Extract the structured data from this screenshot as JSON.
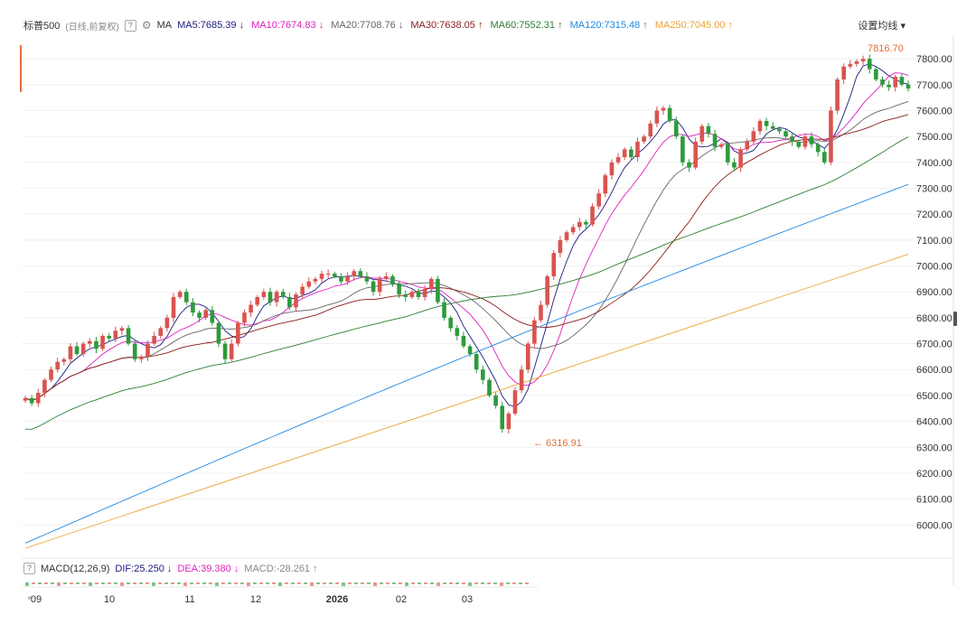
{
  "header": {
    "symbol": "标普500",
    "mode": "(日线,前复权)",
    "help": "?",
    "ma_label": "MA",
    "settings": "设置均线 ▾"
  },
  "ma_legend": [
    {
      "label": "MA5:7685.39",
      "dir": "down",
      "color": "#1a1a80"
    },
    {
      "label": "MA10:7674.83",
      "dir": "down",
      "color": "#e020c0"
    },
    {
      "label": "MA20:7708.76",
      "dir": "down",
      "color": "#666666"
    },
    {
      "label": "MA30:7638.05",
      "dir": "up",
      "color": "#8b1a1a"
    },
    {
      "label": "MA60:7552.31",
      "dir": "up",
      "color": "#2e7d32"
    },
    {
      "label": "MA120:7315.48",
      "dir": "up",
      "color": "#1e88e5"
    },
    {
      "label": "MA250:7045.00",
      "dir": "up",
      "color": "#f0a030"
    }
  ],
  "macd_legend": {
    "title": "MACD(12,26,9)",
    "dif": "DIF:25.250",
    "dif_dir": "down",
    "dea": "DEA:39.380",
    "dea_dir": "down",
    "macd": "MACD:-28.261",
    "macd_dir": "up"
  },
  "colors": {
    "up": "#d9534f",
    "down": "#2e9a3c",
    "ma5": "#1a1a80",
    "ma10": "#e020c0",
    "ma20": "#666666",
    "ma30": "#8b1a1a",
    "ma60": "#2e7d32",
    "ma120": "#1e88e5",
    "ma250": "#f0a030",
    "annotation": "#e0703a"
  },
  "chart_data": {
    "type": "line",
    "title": "标普500",
    "price_axis": {
      "ylim": [
        5900,
        7870
      ],
      "ticks": [
        "7800.00",
        "7700.00",
        "7600.00",
        "7500.00",
        "7400.00",
        "7300.00",
        "7200.00",
        "7100.00",
        "7000.00",
        "6900.00",
        "6800.00",
        "6700.00",
        "6600.00",
        "6500.00",
        "6400.00",
        "6300.00",
        "6200.00",
        "6100.00",
        "6000.00"
      ]
    },
    "macd_axis_label": "6000.00",
    "bottom_cut_label": "6000.00",
    "time_axis": [
      "09",
      "10",
      "11",
      "12",
      "2026",
      "02",
      "03"
    ],
    "annotations": {
      "high": "7816.70",
      "low": "6316.91"
    },
    "close_series": {
      "name": "close",
      "values": [
        6490,
        6470,
        6510,
        6560,
        6600,
        6630,
        6640,
        6690,
        6660,
        6700,
        6710,
        6680,
        6730,
        6720,
        6750,
        6760,
        6700,
        6640,
        6650,
        6700,
        6730,
        6760,
        6800,
        6880,
        6900,
        6860,
        6820,
        6800,
        6830,
        6780,
        6700,
        6640,
        6700,
        6780,
        6820,
        6850,
        6880,
        6900,
        6860,
        6900,
        6880,
        6840,
        6890,
        6920,
        6940,
        6950,
        6970,
        6970,
        6960,
        6940,
        6960,
        6980,
        6960,
        6940,
        6900,
        6950,
        6960,
        6930,
        6890,
        6880,
        6900,
        6880,
        6910,
        6950,
        6860,
        6800,
        6760,
        6730,
        6690,
        6660,
        6600,
        6560,
        6500,
        6460,
        6370,
        6430,
        6520,
        6600,
        6700,
        6790,
        6850,
        6960,
        7050,
        7100,
        7130,
        7150,
        7170,
        7160,
        7230,
        7280,
        7350,
        7400,
        7420,
        7450,
        7420,
        7480,
        7500,
        7550,
        7600,
        7610,
        7560,
        7500,
        7400,
        7380,
        7480,
        7540,
        7510,
        7460,
        7470,
        7400,
        7380,
        7450,
        7480,
        7520,
        7560,
        7540,
        7530,
        7520,
        7500,
        7480,
        7460,
        7500,
        7470,
        7440,
        7400,
        7600,
        7720,
        7770,
        7780,
        7790,
        7800,
        7760,
        7720,
        7700,
        7690,
        7730,
        7700,
        7685
      ]
    },
    "ma_series": [
      {
        "name": "MA5",
        "values_start": 6470,
        "values_end": 7685
      },
      {
        "name": "MA10",
        "values_start": 6460,
        "values_end": 7675
      },
      {
        "name": "MA20",
        "values_start": 6445,
        "values_end": 7709
      },
      {
        "name": "MA30",
        "values_start": 6430,
        "values_end": 7638
      },
      {
        "name": "MA60",
        "values_start": 6250,
        "values_end": 7552
      },
      {
        "name": "MA120",
        "values_start": 5930,
        "values_end": 7315
      },
      {
        "name": "MA250",
        "values_start": 5910,
        "values_end": 7045
      }
    ]
  }
}
